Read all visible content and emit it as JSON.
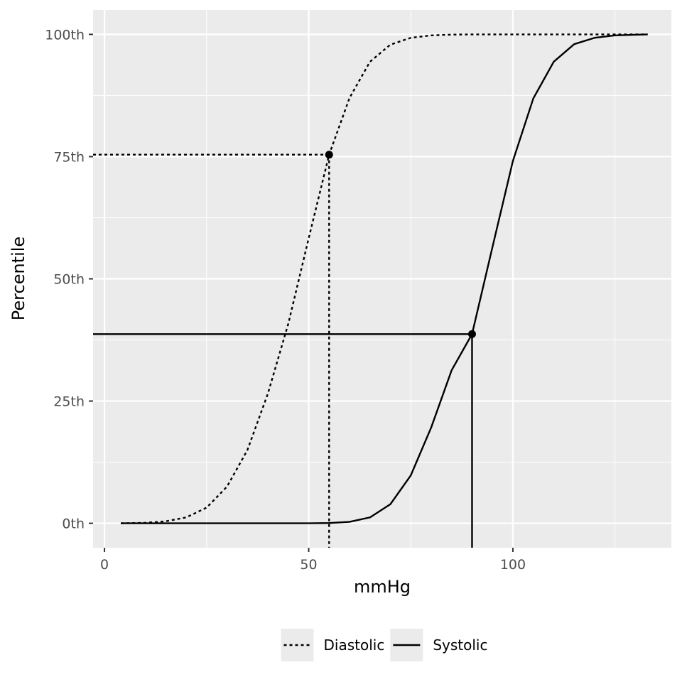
{
  "chart_data": {
    "type": "line",
    "xlabel": "mmHg",
    "ylabel": "Percentile",
    "xlim": [
      -2.8,
      138.8
    ],
    "ylim": [
      -5,
      105
    ],
    "x_ticks": [
      0,
      50,
      100
    ],
    "x_tick_labels": [
      "0",
      "50",
      "100"
    ],
    "x_minor_gridlines": [
      25,
      75,
      125
    ],
    "y_ticks": [
      0,
      25,
      50,
      75,
      100
    ],
    "y_tick_labels": [
      "0th",
      "25th",
      "50th",
      "75th",
      "100th"
    ],
    "y_minor_gridlines": [
      12.5,
      37.5,
      62.5,
      87.5
    ],
    "grid": true,
    "background": "#ebebeb",
    "gridline_color": "#ffffff",
    "line_color": "#000000",
    "legend_position": "bottom",
    "series": [
      {
        "name": "Diastolic",
        "linetype": "dashed",
        "x": [
          4,
          10,
          15,
          20,
          25,
          30,
          35,
          40,
          45,
          50,
          55,
          60,
          65,
          70,
          75,
          80,
          85,
          90,
          100,
          110,
          120,
          133
        ],
        "values": [
          0,
          0.1,
          0.4,
          1.2,
          3.2,
          7.5,
          15,
          26.5,
          40.8,
          58.3,
          75.4,
          87,
          94.4,
          97.9,
          99.3,
          99.8,
          99.95,
          100,
          100,
          100,
          100,
          100
        ]
      },
      {
        "name": "Systolic",
        "linetype": "solid",
        "x": [
          4,
          40,
          50,
          55,
          60,
          65,
          70,
          75,
          80,
          85,
          90,
          95,
          100,
          105,
          110,
          115,
          120,
          125,
          133
        ],
        "values": [
          0,
          0,
          0,
          0.05,
          0.3,
          1.2,
          3.9,
          9.8,
          19.6,
          31.3,
          38.7,
          56.5,
          74.1,
          86.9,
          94.4,
          98,
          99.3,
          99.8,
          100
        ]
      }
    ],
    "reference_points": [
      {
        "series": "Diastolic",
        "x": 55,
        "y": 75.4
      },
      {
        "series": "Systolic",
        "x": 90,
        "y": 38.7
      }
    ]
  }
}
